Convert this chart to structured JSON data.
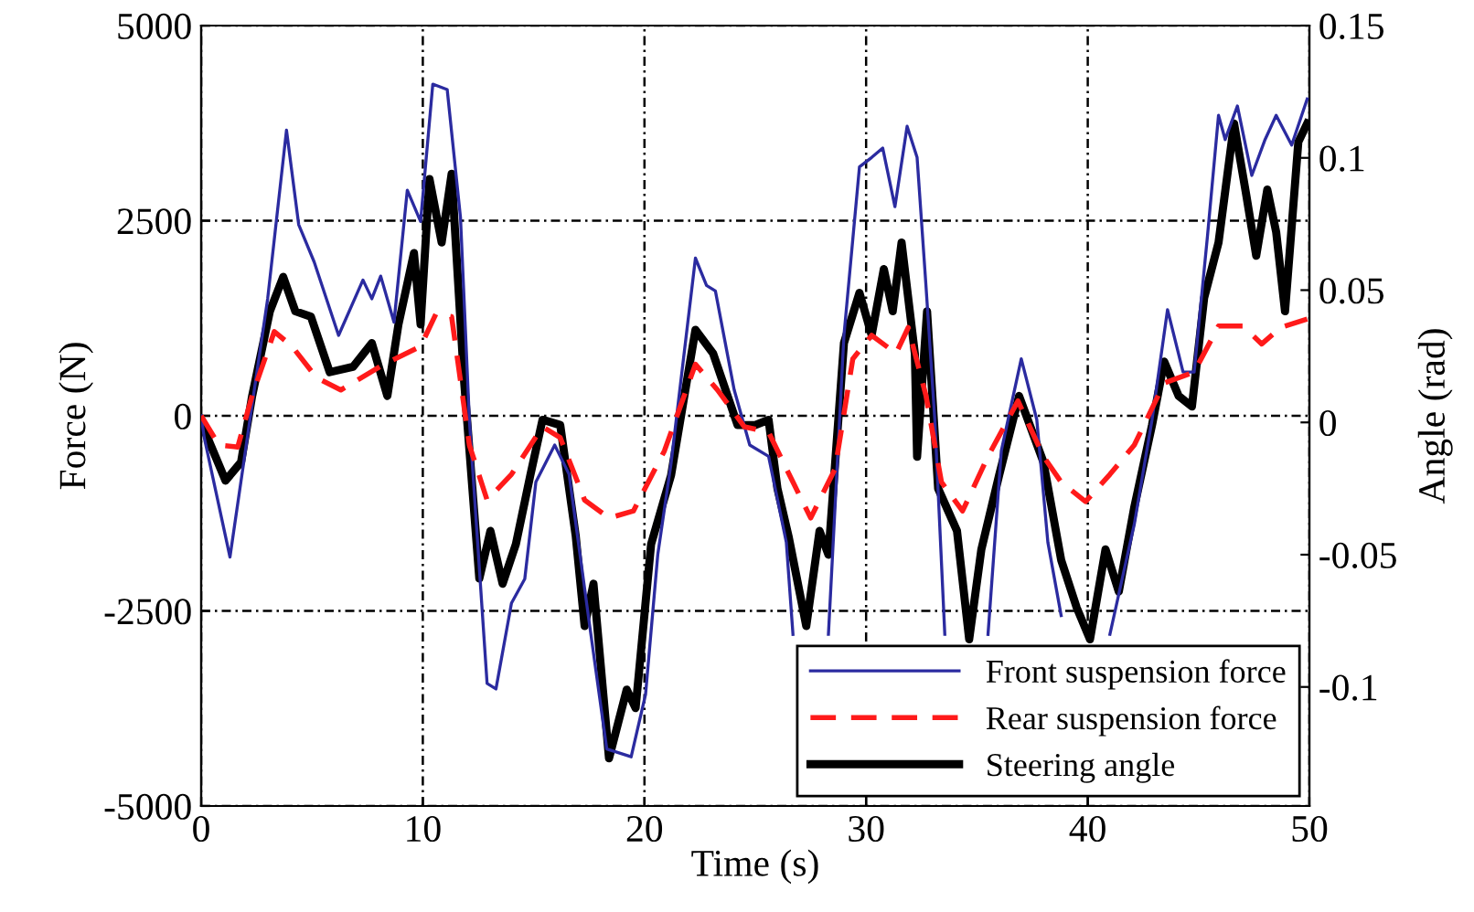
{
  "chart_data": {
    "type": "line",
    "xlabel": "Time (s)",
    "ylabel": "Force (N)",
    "y2label": "Angle (rad)",
    "xlim": [
      0,
      50
    ],
    "xticks": [
      0,
      10,
      20,
      30,
      40,
      50
    ],
    "ylim": [
      -5000,
      5000
    ],
    "yticks": [
      -5000,
      -2500,
      0,
      2500,
      5000
    ],
    "y2lim": [
      -0.145,
      0.15
    ],
    "y2ticks": [
      -0.1,
      -0.05,
      0,
      0.05,
      0.1,
      0.15
    ],
    "grid": true,
    "legend": "bottom right",
    "marker": "none",
    "series": [
      {
        "name": "Front suspension force",
        "color": "#2b2ba0",
        "line_style": "solid",
        "x": [
          0,
          0.14,
          1.3,
          2.2,
          3.0,
          3.85,
          4.4,
          5.1,
          6.2,
          7.3,
          7.7,
          8.1,
          8.7,
          9.3,
          9.9,
          10.45,
          11.1,
          11.7,
          12.1,
          12.9,
          13.3,
          14.0,
          14.6,
          15.1,
          15.95,
          16.6,
          17.5,
          18.3,
          19.4,
          20.05,
          20.6,
          21.2,
          22.3,
          22.8,
          23.2,
          24.05,
          24.75,
          25.6,
          26.4,
          26.7,
          27.5,
          28.3,
          29.0,
          29.7,
          30.25,
          30.75,
          31.3,
          31.85,
          32.3,
          32.7,
          33.1,
          33.55,
          34.5,
          35.5,
          36.1,
          37.0,
          37.7,
          38.2,
          38.8,
          40.0,
          41.0,
          42.1,
          42.9,
          43.6,
          44.3,
          44.8,
          45.4,
          45.9,
          46.2,
          46.75,
          47.4,
          48.0,
          48.5,
          49.2,
          49.9
        ],
        "values": [
          0,
          -280,
          -1810,
          -50,
          1500,
          3660,
          2450,
          1970,
          1030,
          1740,
          1500,
          1790,
          1200,
          2890,
          2490,
          4250,
          4180,
          2540,
          -50,
          -3430,
          -3500,
          -2400,
          -2090,
          -850,
          -375,
          -750,
          -2630,
          -4270,
          -4370,
          -3570,
          -1780,
          -610,
          2020,
          1670,
          1600,
          330,
          -375,
          -520,
          -1620,
          -2800,
          null,
          -2800,
          1030,
          3190,
          3310,
          3430,
          2680,
          3710,
          3310,
          1670,
          -50,
          -2800,
          null,
          -2800,
          -450,
          730,
          -50,
          -1620,
          -2560,
          null,
          -2800,
          -1390,
          -50,
          1360,
          560,
          560,
          2300,
          3850,
          3540,
          3970,
          3080,
          3540,
          3850,
          3470,
          4060
        ]
      },
      {
        "name": "Rear suspension force",
        "color": "#ff1a1a",
        "line_style": "dashed",
        "x": [
          0,
          0.8,
          1.65,
          2.3,
          3.3,
          4.1,
          5.2,
          6.3,
          8.25,
          9.9,
          10.6,
          11.3,
          12.1,
          12.9,
          14.0,
          15.4,
          16.2,
          17.3,
          18.4,
          19.5,
          20.9,
          22.3,
          23.3,
          24.5,
          25.6,
          26.7,
          27.5,
          28.6,
          29.4,
          30.25,
          31.35,
          31.9,
          32.7,
          33.4,
          34.35,
          35.5,
          36.85,
          38.0,
          38.8,
          39.9,
          41.0,
          42.1,
          43.45,
          44.8,
          45.9,
          47.0,
          47.85,
          48.7,
          49.9
        ],
        "values": [
          0,
          -375,
          -400,
          260,
          1080,
          890,
          490,
          330,
          660,
          890,
          1310,
          1270,
          -375,
          -1080,
          -750,
          -140,
          -280,
          -1080,
          -1310,
          -1220,
          -450,
          660,
          330,
          -140,
          -210,
          -850,
          -1310,
          -680,
          730,
          1030,
          800,
          1130,
          260,
          -850,
          -1220,
          -520,
          190,
          -520,
          -850,
          -1100,
          -750,
          -375,
          420,
          560,
          1150,
          1150,
          920,
          1130,
          1240
        ]
      },
      {
        "name": "Steering angle",
        "color": "#000000",
        "line_style": "solid",
        "axis": "y2",
        "x": [
          0,
          1.1,
          1.8,
          2.3,
          3.1,
          3.7,
          4.25,
          4.95,
          5.8,
          6.85,
          7.7,
          8.4,
          8.9,
          9.6,
          9.9,
          10.3,
          10.85,
          11.3,
          11.85,
          12.55,
          13.05,
          13.6,
          14.2,
          14.85,
          15.4,
          16.2,
          16.9,
          17.3,
          17.7,
          18.4,
          19.2,
          19.6,
          20.3,
          21.2,
          22.3,
          23.1,
          24.2,
          25.0,
          25.6,
          26.0,
          26.5,
          27.3,
          27.9,
          28.3,
          29.0,
          29.7,
          30.25,
          30.8,
          31.2,
          31.6,
          32.2,
          32.3,
          32.75,
          33.25,
          34.1,
          34.65,
          35.2,
          36.0,
          36.9,
          38.0,
          38.8,
          39.5,
          40.1,
          40.8,
          41.4,
          42.1,
          42.9,
          43.45,
          44.1,
          44.7,
          45.25,
          45.9,
          46.6,
          47.15,
          47.6,
          48.1,
          48.5,
          48.9,
          49.5,
          49.9
        ],
        "values": [
          0,
          -0.022,
          -0.015,
          0.01,
          0.042,
          0.055,
          0.042,
          0.04,
          0.019,
          0.021,
          0.03,
          0.01,
          0.037,
          0.064,
          0.037,
          0.092,
          0.068,
          0.094,
          0.017,
          -0.059,
          -0.041,
          -0.061,
          -0.046,
          -0.02,
          0.001,
          -0.001,
          -0.043,
          -0.077,
          -0.061,
          -0.127,
          -0.101,
          -0.108,
          -0.046,
          -0.02,
          0.035,
          0.026,
          -0.001,
          -0.001,
          0.001,
          -0.025,
          -0.043,
          -0.077,
          -0.041,
          -0.05,
          0.03,
          0.049,
          0.033,
          0.058,
          0.042,
          0.068,
          0.026,
          -0.013,
          0.042,
          -0.025,
          -0.041,
          -0.082,
          -0.048,
          -0.02,
          0.01,
          -0.015,
          -0.052,
          -0.07,
          -0.082,
          -0.048,
          -0.064,
          -0.032,
          -0.001,
          0.023,
          0.01,
          0.006,
          0.047,
          0.068,
          0.113,
          0.086,
          0.063,
          0.088,
          0.072,
          0.042,
          0.106,
          0.113
        ]
      }
    ]
  }
}
